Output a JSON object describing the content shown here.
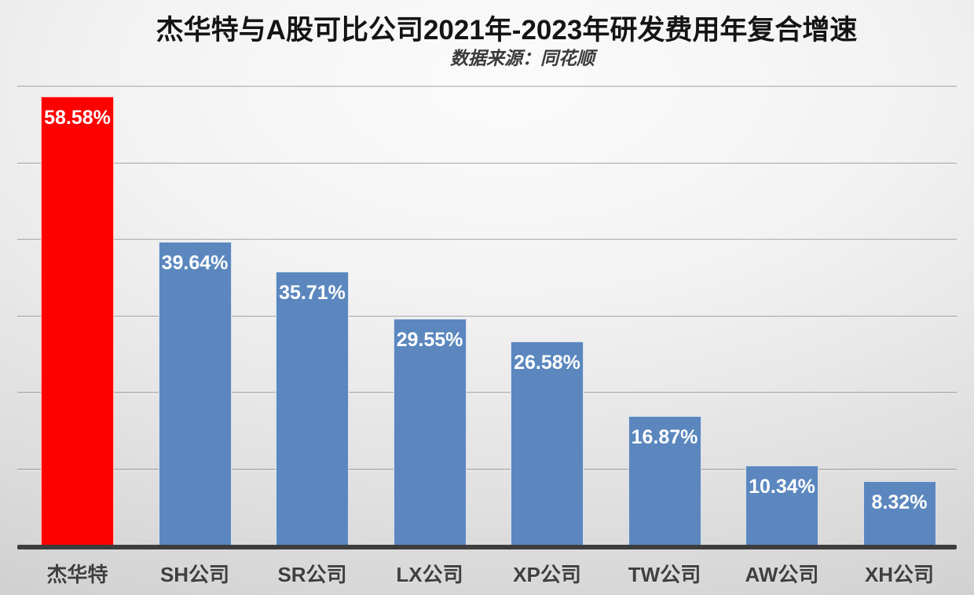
{
  "chart_data": {
    "type": "bar",
    "title": "杰华特与A股可比公司2021年-2023年研发费用年复合增速",
    "subtitle": "数据来源：同花顺",
    "categories": [
      "杰华特",
      "SH公司",
      "SR公司",
      "LX公司",
      "XP公司",
      "TW公司",
      "AW公司",
      "XH公司"
    ],
    "values": [
      58.58,
      39.64,
      35.71,
      29.55,
      26.58,
      16.87,
      10.34,
      8.32
    ],
    "data_labels": [
      "58.58%",
      "39.64%",
      "35.71%",
      "29.55%",
      "26.58%",
      "16.87%",
      "10.34%",
      "8.32%"
    ],
    "ylim": [
      0,
      60
    ],
    "gridline_step": 10,
    "grid": true,
    "legend": false,
    "y_axis_tick_labels_visible": false,
    "highlight_index": 0,
    "colors": {
      "highlight_bar": "#fd0000",
      "bar": "#5b87be",
      "data_label": "#ffffff",
      "axis_line": "#3d3d3d",
      "gridline": "#8f8f8f",
      "title": "#141414",
      "subtitle": "#3a3a3a",
      "category_label": "#3f3f3f",
      "background_edge": "#c3c5c4",
      "background_center": "#fbfbfb"
    }
  }
}
